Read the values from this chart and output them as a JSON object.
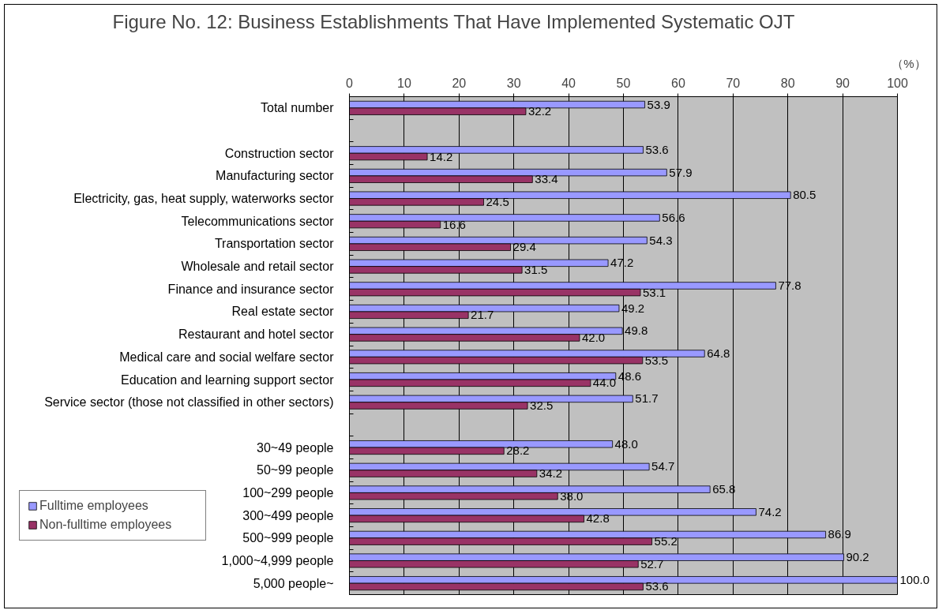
{
  "chart_data": {
    "type": "bar",
    "orientation": "horizontal",
    "title": "Figure No. 12: Business Establishments That Have Implemented Systematic OJT",
    "xlabel": "（%）",
    "categories": [
      "Total number",
      null,
      "Construction sector",
      "Manufacturing sector",
      "Electricity, gas, heat supply, waterworks sector",
      "Telecommunications sector",
      "Transportation sector",
      "Wholesale and retail sector",
      "Finance and insurance sector",
      "Real estate sector",
      "Restaurant and hotel sector",
      "Medical care and social welfare sector",
      "Education and learning support sector",
      "Service sector (those not classified in other sectors)",
      null,
      "30~49 people",
      "50~99 people",
      "100~299 people",
      "300~499 people",
      "500~999 people",
      "1,000~4,999 people",
      "5,000 people~"
    ],
    "series": [
      {
        "name": "Fulltime employees",
        "color": "#9999ff",
        "values": [
          53.9,
          null,
          53.6,
          57.9,
          80.5,
          56.6,
          54.3,
          47.2,
          77.8,
          49.2,
          49.8,
          64.8,
          48.6,
          51.7,
          null,
          48.0,
          54.7,
          65.8,
          74.2,
          86.9,
          90.2,
          100.0
        ],
        "value_labels": [
          "53.9",
          null,
          "53.6",
          "57.9",
          "80.5",
          "56.6",
          "54.3",
          "47.2",
          "77.8",
          "49.2",
          "49.8",
          "64.8",
          "48.6",
          "51.7",
          null,
          "48.0",
          "54.7",
          "65.8",
          "74.2",
          "86.9",
          "90.2",
          "100.0"
        ]
      },
      {
        "name": "Non-fulltime employees",
        "color": "#993366",
        "values": [
          32.2,
          null,
          14.2,
          33.4,
          24.5,
          16.6,
          29.4,
          31.5,
          53.1,
          21.7,
          42.0,
          53.5,
          44.0,
          32.5,
          null,
          28.2,
          34.2,
          38.0,
          42.8,
          55.2,
          52.7,
          53.6
        ],
        "value_labels": [
          "32.2",
          null,
          "14.2",
          "33.4",
          "24.5",
          "16.6",
          "29.4",
          "31.5",
          "53.1",
          "21.7",
          "42.0",
          "53.5",
          "44.0",
          "32.5",
          null,
          "28.2",
          "34.2",
          "38.0",
          "42.8",
          "55.2",
          "52.7",
          "53.6"
        ]
      }
    ],
    "xlim": [
      0,
      100
    ],
    "xticks": [
      0,
      10,
      20,
      30,
      40,
      50,
      60,
      70,
      80,
      90,
      100
    ],
    "grid": "x",
    "legend": "left"
  }
}
